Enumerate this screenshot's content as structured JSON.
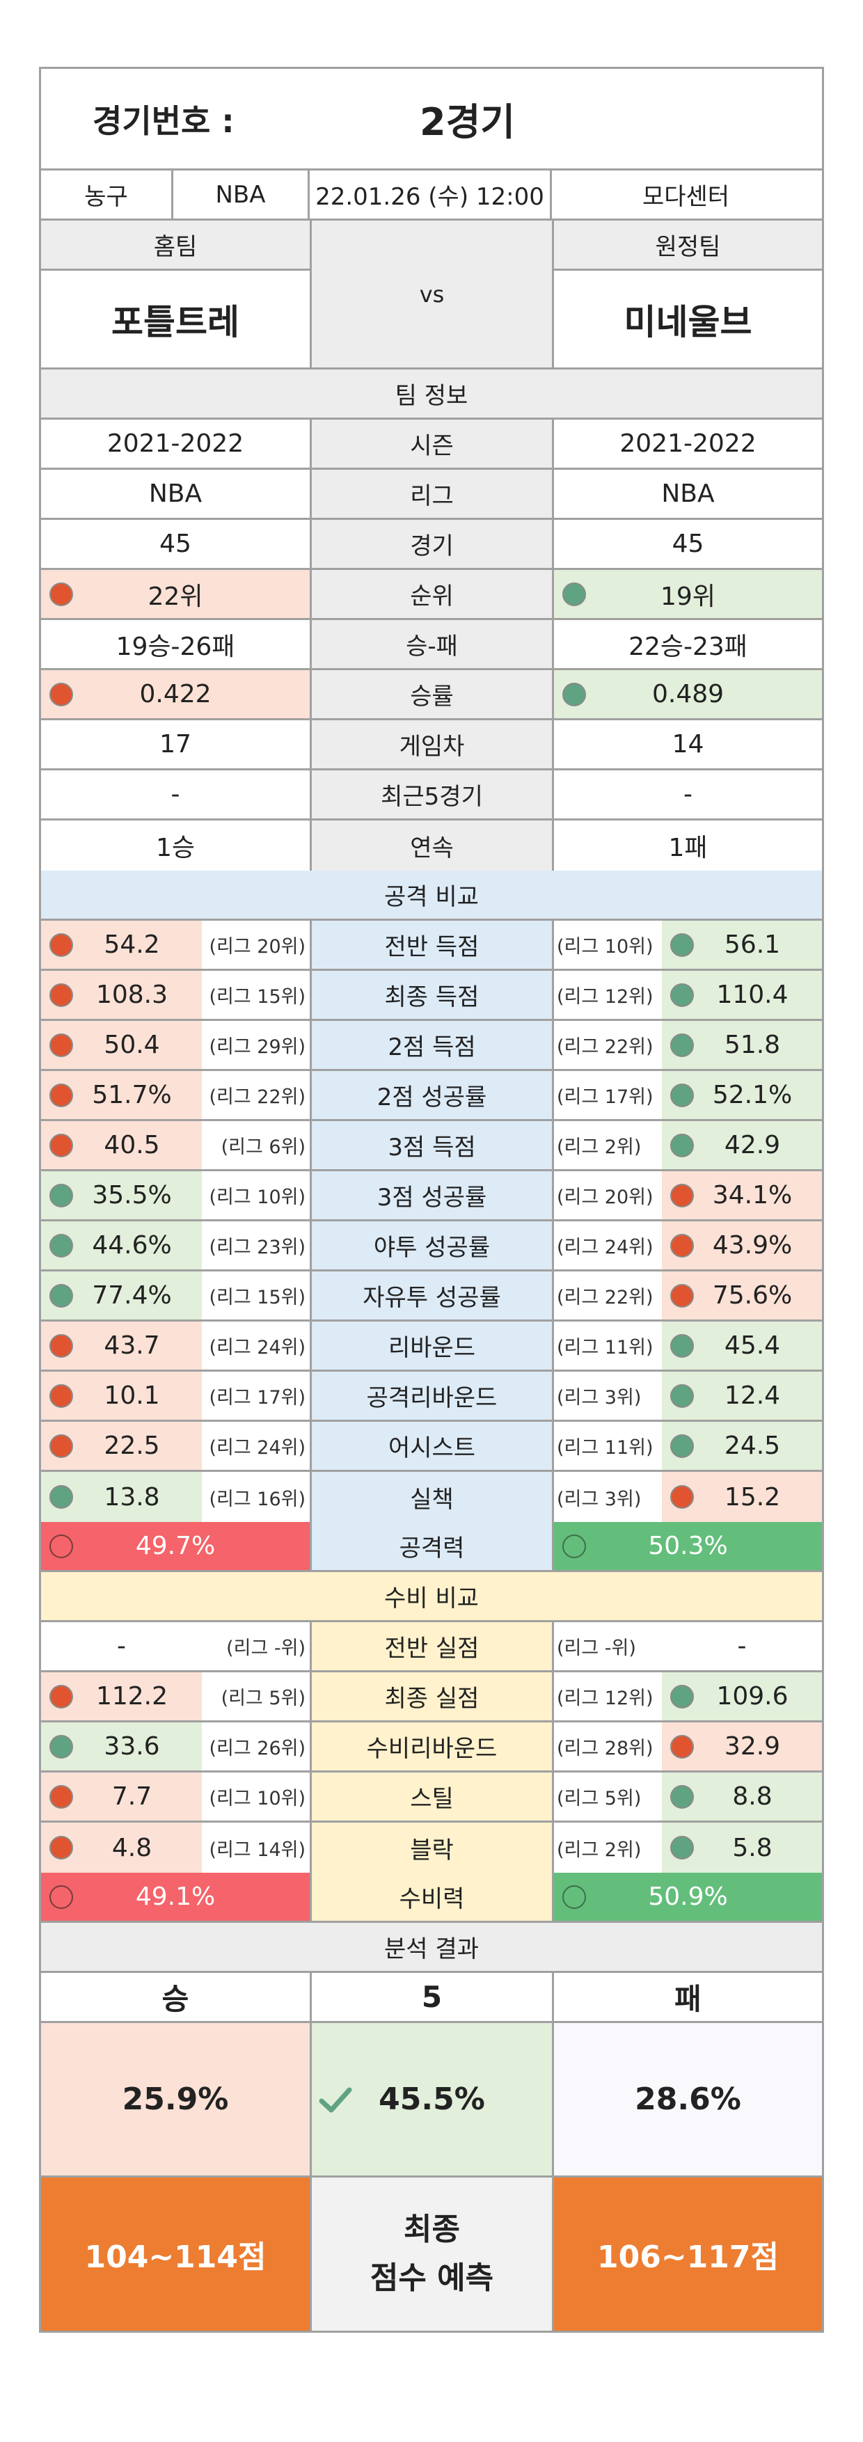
{
  "header": {
    "label": "경기번호 :",
    "value": "2경기"
  },
  "match": {
    "sport": "농구",
    "league": "NBA",
    "datetime": "22.01.26 (수) 12:00",
    "venue": "모다센터"
  },
  "teams": {
    "home_label": "홈팀",
    "away_label": "원정팀",
    "vs": "vs",
    "home": "포틀트레",
    "away": "미네울브"
  },
  "team_info": {
    "title": "팀 정보",
    "rows": [
      {
        "home": "2021-2022",
        "label": "시즌",
        "away": "2021-2022"
      },
      {
        "home": "NBA",
        "label": "리그",
        "away": "NBA"
      },
      {
        "home": "45",
        "label": "경기",
        "away": "45"
      },
      {
        "home": "22위",
        "label": "순위",
        "away": "19위"
      },
      {
        "home": "19승-26패",
        "label": "승-패",
        "away": "22승-23패"
      },
      {
        "home": "0.422",
        "label": "승률",
        "away": "0.489"
      },
      {
        "home": "17",
        "label": "게임차",
        "away": "14"
      },
      {
        "home": "-",
        "label": "최근5경기",
        "away": "-"
      },
      {
        "home": "1승",
        "label": "연속",
        "away": "1패"
      }
    ]
  },
  "attack": {
    "title": "공격 비교",
    "rows": [
      {
        "home": "54.2",
        "home_rank": "(리그 20위)",
        "label": "전반 득점",
        "away_rank": "(리그 10위)",
        "away": "56.1"
      },
      {
        "home": "108.3",
        "home_rank": "(리그 15위)",
        "label": "최종 득점",
        "away_rank": "(리그 12위)",
        "away": "110.4"
      },
      {
        "home": "50.4",
        "home_rank": "(리그 29위)",
        "label": "2점 득점",
        "away_rank": "(리그 22위)",
        "away": "51.8"
      },
      {
        "home": "51.7%",
        "home_rank": "(리그 22위)",
        "label": "2점 성공률",
        "away_rank": "(리그 17위)",
        "away": "52.1%"
      },
      {
        "home": "40.5",
        "home_rank": "(리그 6위)",
        "label": "3점 득점",
        "away_rank": "(리그 2위)",
        "away": "42.9"
      },
      {
        "home": "35.5%",
        "home_rank": "(리그 10위)",
        "label": "3점 성공률",
        "away_rank": "(리그 20위)",
        "away": "34.1%"
      },
      {
        "home": "44.6%",
        "home_rank": "(리그 23위)",
        "label": "야투 성공률",
        "away_rank": "(리그 24위)",
        "away": "43.9%"
      },
      {
        "home": "77.4%",
        "home_rank": "(리그 15위)",
        "label": "자유투 성공률",
        "away_rank": "(리그 22위)",
        "away": "75.6%"
      },
      {
        "home": "43.7",
        "home_rank": "(리그 24위)",
        "label": "리바운드",
        "away_rank": "(리그 11위)",
        "away": "45.4"
      },
      {
        "home": "10.1",
        "home_rank": "(리그 17위)",
        "label": "공격리바운드",
        "away_rank": "(리그 3위)",
        "away": "12.4"
      },
      {
        "home": "22.5",
        "home_rank": "(리그 24위)",
        "label": "어시스트",
        "away_rank": "(리그 11위)",
        "away": "24.5"
      },
      {
        "home": "13.8",
        "home_rank": "(리그 16위)",
        "label": "실책",
        "away_rank": "(리그 3위)",
        "away": "15.2"
      }
    ],
    "total": {
      "home": "49.7%",
      "label": "공격력",
      "away": "50.3%"
    }
  },
  "defense": {
    "title": "수비 비교",
    "rows": [
      {
        "home": "-",
        "home_rank": "(리그 -위)",
        "label": "전반 실점",
        "away_rank": "(리그 -위)",
        "away": "-"
      },
      {
        "home": "112.2",
        "home_rank": "(리그 5위)",
        "label": "최종 실점",
        "away_rank": "(리그 12위)",
        "away": "109.6"
      },
      {
        "home": "33.6",
        "home_rank": "(리그 26위)",
        "label": "수비리바운드",
        "away_rank": "(리그 28위)",
        "away": "32.9"
      },
      {
        "home": "7.7",
        "home_rank": "(리그 10위)",
        "label": "스틸",
        "away_rank": "(리그 5위)",
        "away": "8.8"
      },
      {
        "home": "4.8",
        "home_rank": "(리그 14위)",
        "label": "블락",
        "away_rank": "(리그 2위)",
        "away": "5.8"
      }
    ],
    "total": {
      "home": "49.1%",
      "label": "수비력",
      "away": "50.9%"
    }
  },
  "analysis": {
    "title": "분석 결과",
    "win_label": "승",
    "draw_label": "5",
    "loss_label": "패",
    "win_pct": "25.9%",
    "draw_pct": "45.5%",
    "loss_pct": "28.6%",
    "home_score": "104~114점",
    "score_label_1": "최종",
    "score_label_2": "점수 예측",
    "away_score": "106~117점"
  },
  "colors": {
    "red_dot": "#e05530",
    "green_dot": "#5fa383",
    "pink_cell": "#fbe1d6",
    "green_cell": "#e2efda",
    "attack_bg": "#ddebf7",
    "defense_bg": "#fff2cc",
    "orange": "#ed7d31"
  }
}
